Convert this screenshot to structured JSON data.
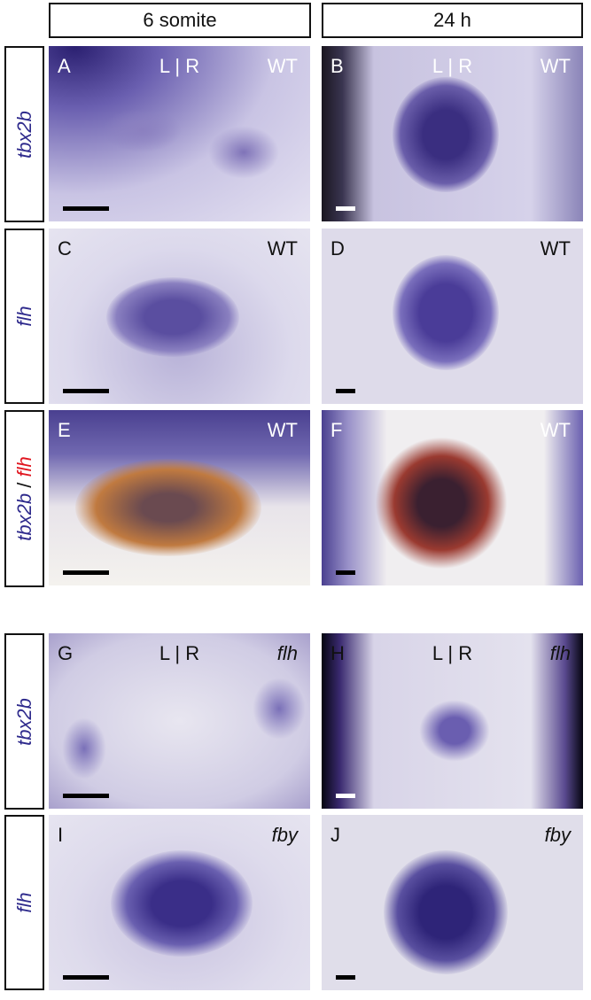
{
  "columns": [
    "6 somite",
    "24 h"
  ],
  "rows": [
    {
      "label": "tbx2b"
    },
    {
      "label": "flh"
    },
    {
      "label_parts": [
        "tbx2b",
        " / ",
        "flh"
      ],
      "colors": [
        "#2e2a8c",
        "#111111",
        "#e0141e"
      ]
    },
    {
      "label": "tbx2b"
    },
    {
      "label": "flh"
    }
  ],
  "panels": [
    {
      "letter": "A",
      "lr": "L | R",
      "genotype": "WT"
    },
    {
      "letter": "B",
      "lr": "L | R",
      "genotype": "WT"
    },
    {
      "letter": "C",
      "genotype": "WT"
    },
    {
      "letter": "D",
      "genotype": "WT"
    },
    {
      "letter": "E",
      "genotype": "WT"
    },
    {
      "letter": "F",
      "genotype": "WT"
    },
    {
      "letter": "G",
      "lr": "L | R",
      "genotype": "flh"
    },
    {
      "letter": "H",
      "lr": "L | R",
      "genotype": "flh"
    },
    {
      "letter": "I",
      "genotype": "fby"
    },
    {
      "letter": "J",
      "genotype": "fby"
    }
  ]
}
